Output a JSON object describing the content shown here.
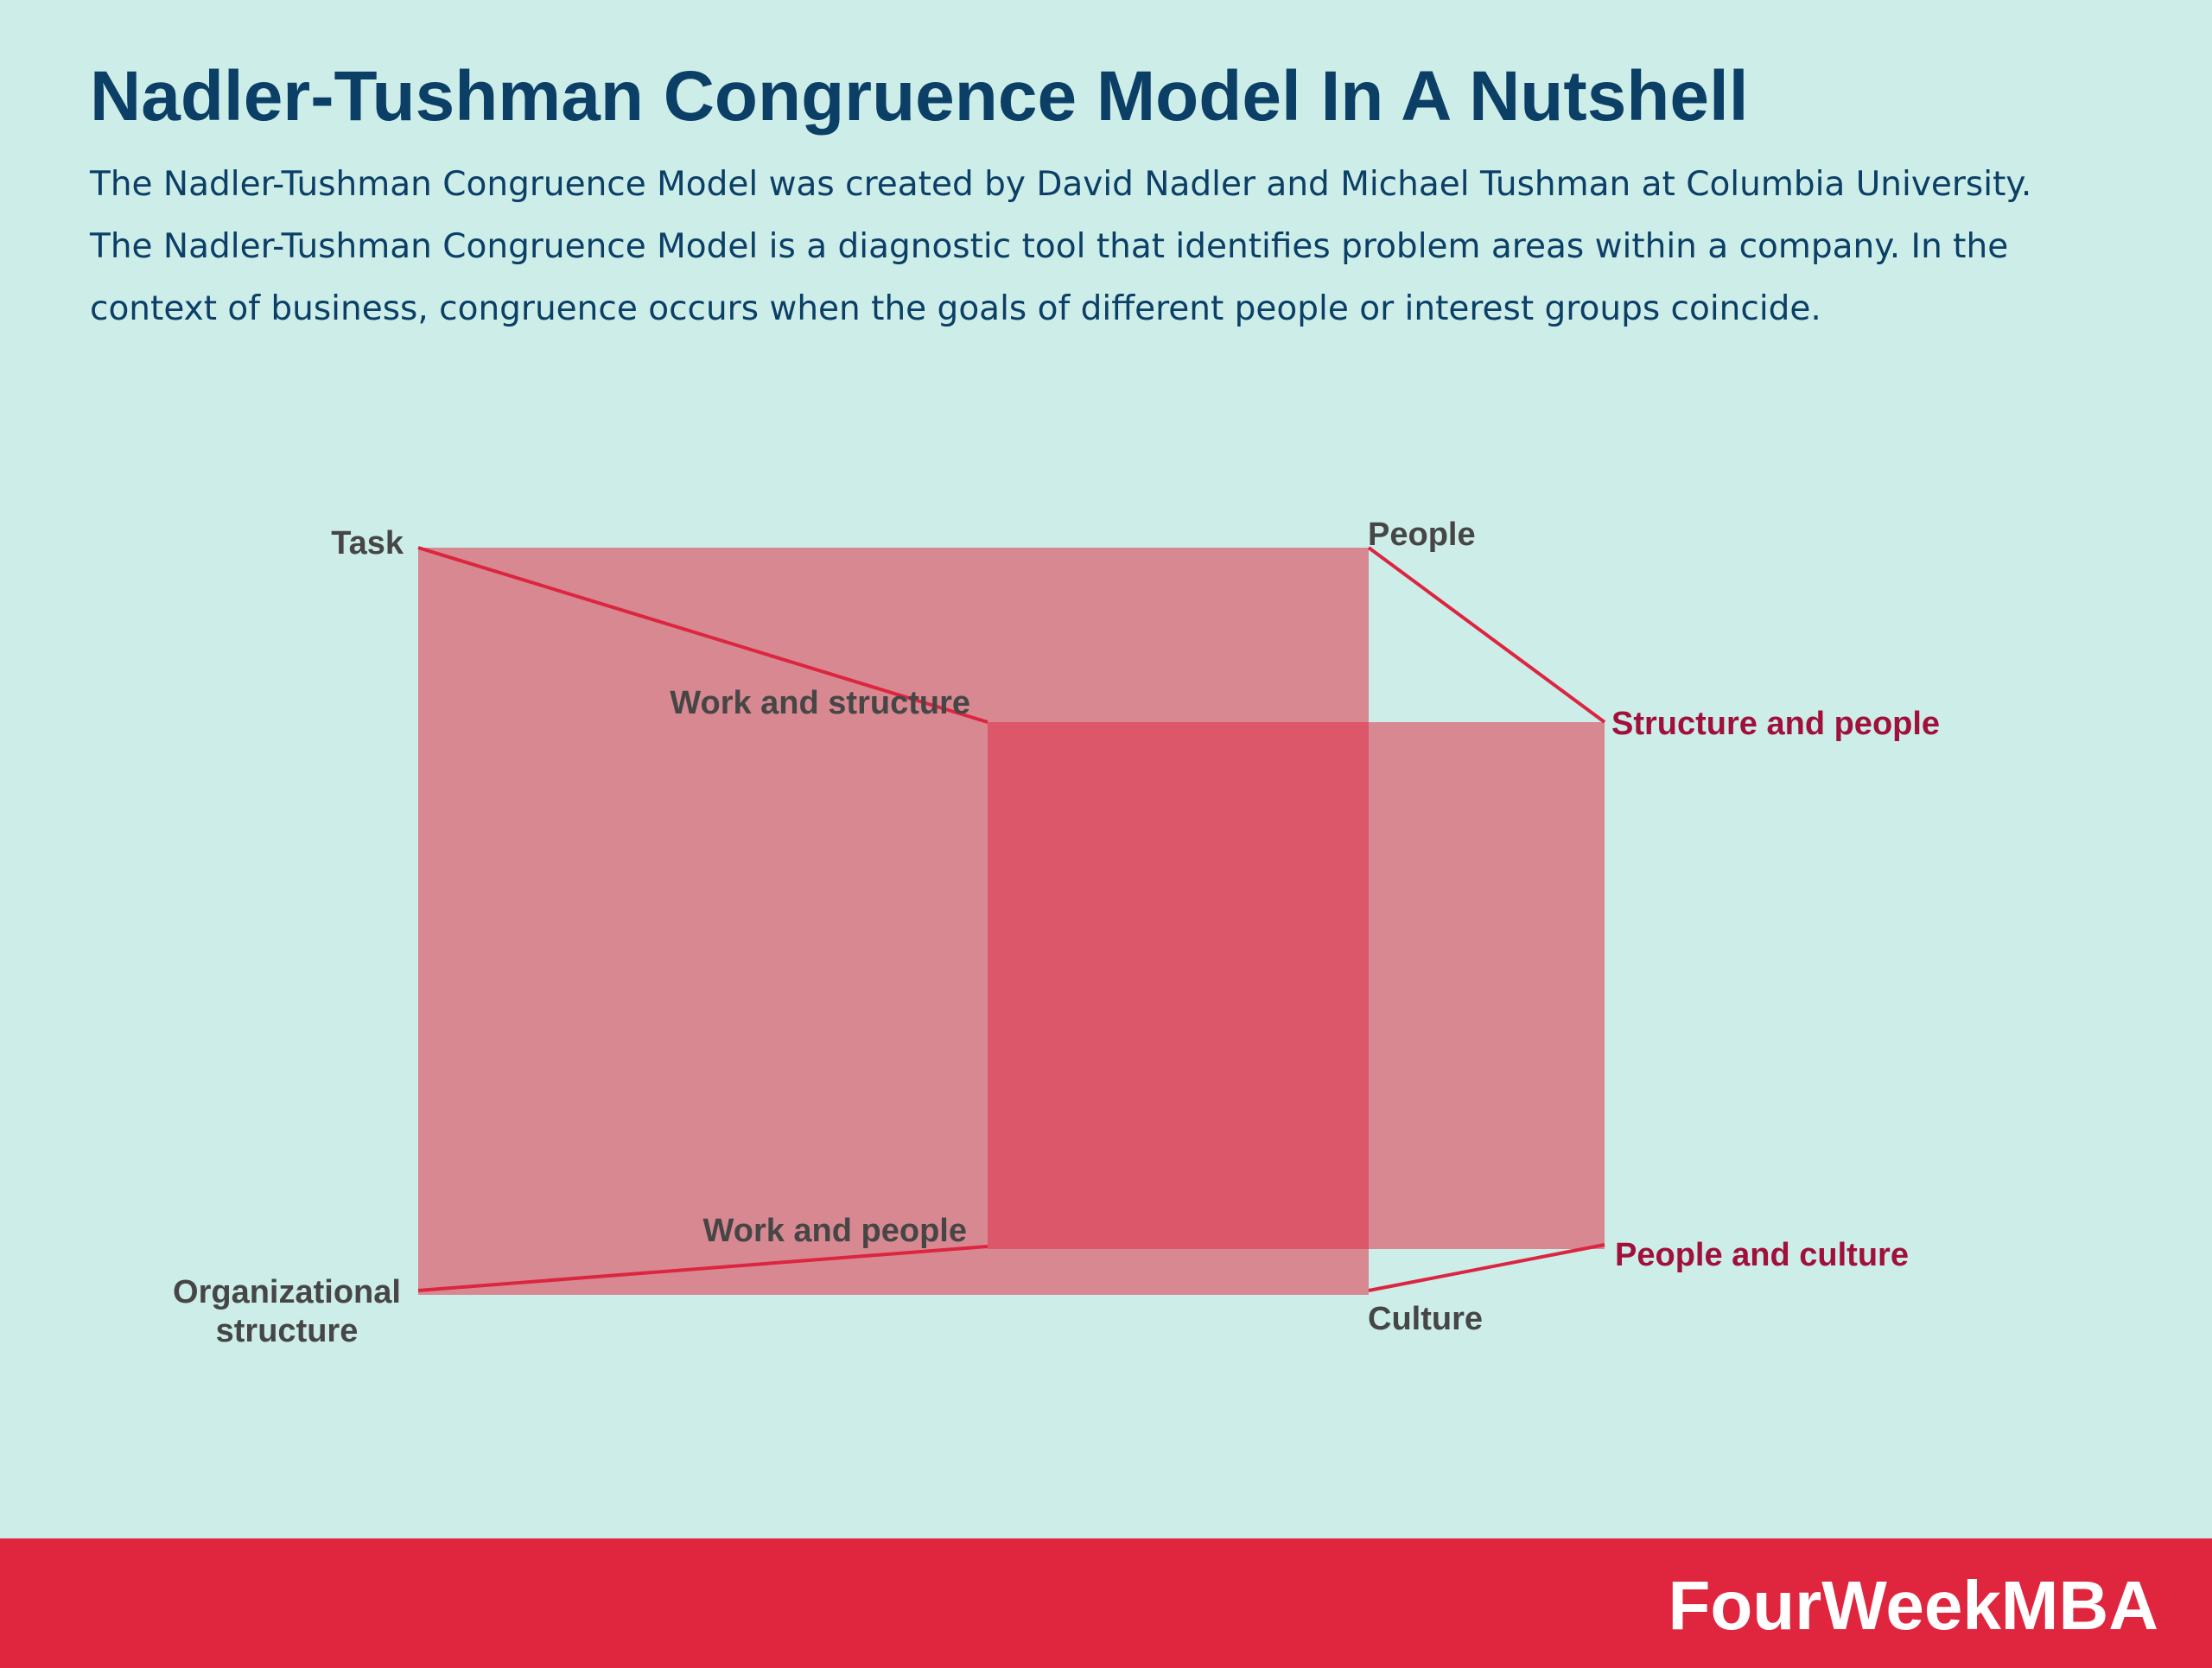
{
  "header": {
    "title": "Nadler-Tushman Congruence Model In A Nutshell",
    "description_lines": [
      "The Nadler-Tushman Congruence Model was created by David Nadler and Michael Tushman at Columbia University.",
      "The Nadler-Tushman Congruence Model is a diagnostic tool that identifies problem areas within a company. In the",
      "context of business, congruence occurs when the goals of different people or interest groups coincide."
    ]
  },
  "diagram": {
    "corners": {
      "task": "Task",
      "people": "People",
      "organizational_structure": [
        "Organizational",
        "structure"
      ],
      "culture": "Culture"
    },
    "links": {
      "work_and_structure": "Work and structure",
      "structure_and_people": "Structure and people",
      "work_and_people": "Work and people",
      "people_and_culture": "People and culture"
    }
  },
  "footer": {
    "brand": "FourWeekMBA"
  },
  "colors": {
    "background": "#cdede9",
    "title_text": "#0b3f66",
    "rect_fill": "#d88891",
    "overlap_fill": "#dc5769",
    "connector": "#dc2540",
    "footer_bar": "#df263e",
    "highlight_label": "#a0103a"
  }
}
